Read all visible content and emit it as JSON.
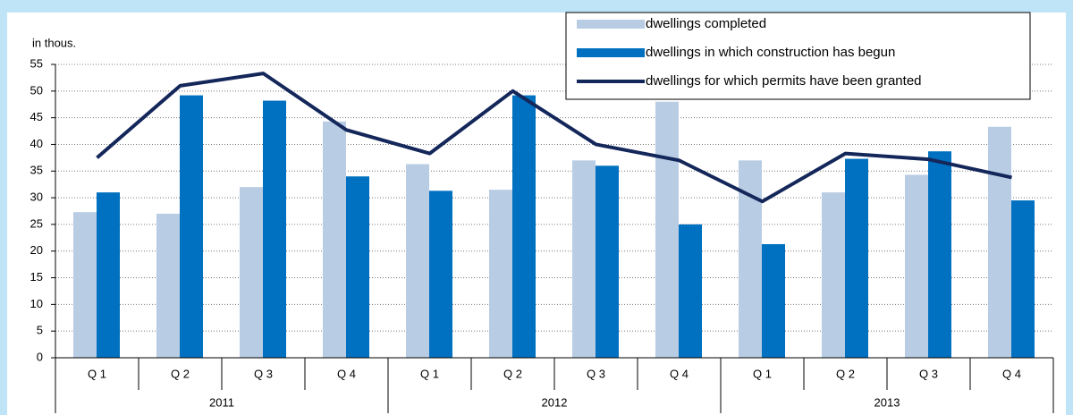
{
  "chart_data": {
    "type": "bar-line",
    "y_label": "in thous.",
    "categories": [
      "Q 1",
      "Q 2",
      "Q 3",
      "Q 4",
      "Q 1",
      "Q 2",
      "Q 3",
      "Q 4",
      "Q 1",
      "Q 2",
      "Q 3",
      "Q 4"
    ],
    "years": [
      "2011",
      "2012",
      "2013"
    ],
    "series": [
      {
        "name": "dwellings completed",
        "type": "bar",
        "color": "#b8cce4",
        "values": [
          27.3,
          27,
          32,
          44.3,
          36.3,
          31.5,
          37,
          48,
          37,
          31,
          34.3,
          43.3
        ]
      },
      {
        "name": "dwellings in which construction has begun",
        "type": "bar",
        "color": "#0070c0",
        "values": [
          31,
          49.2,
          48.2,
          34,
          31.3,
          49.2,
          36,
          25,
          21.3,
          37.3,
          38.7,
          29.5
        ]
      },
      {
        "name": "dwellings for which permits have been granted",
        "type": "line",
        "color": "#14275a",
        "values": [
          37.5,
          51,
          53.3,
          42.7,
          38.3,
          50,
          40,
          37,
          29.3,
          38.3,
          37.2,
          33.8
        ]
      }
    ],
    "ylim": [
      0,
      55
    ],
    "yticks": [
      0,
      5,
      10,
      15,
      20,
      25,
      30,
      35,
      40,
      45,
      50,
      55
    ],
    "grid": true,
    "legend": "top-right"
  }
}
